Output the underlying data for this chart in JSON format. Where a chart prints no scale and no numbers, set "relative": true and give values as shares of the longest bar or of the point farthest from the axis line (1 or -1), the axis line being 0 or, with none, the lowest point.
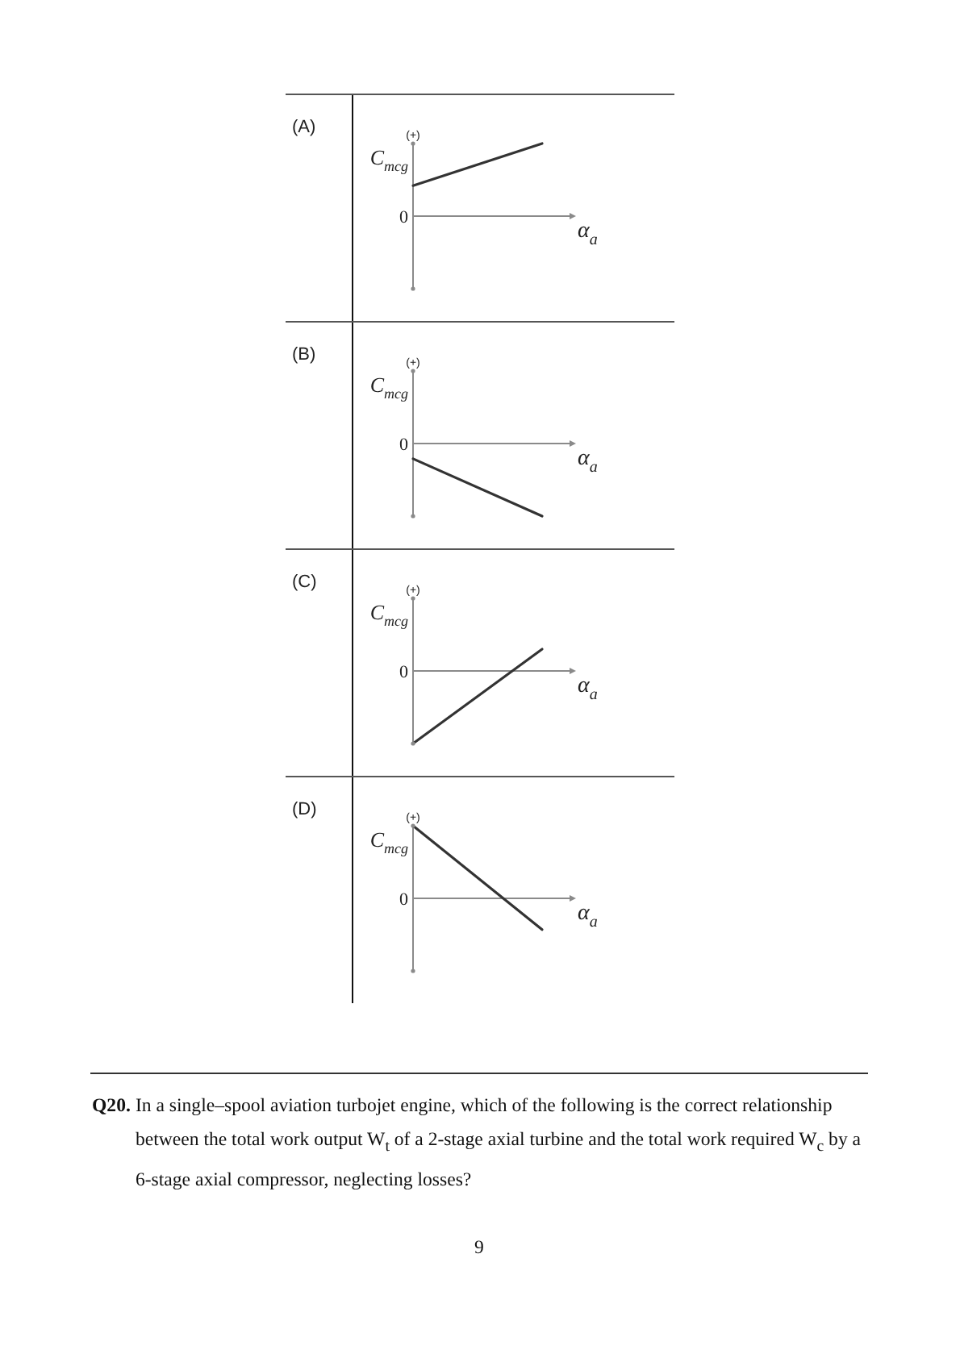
{
  "chart_data": [
    {
      "type": "line",
      "title": "(A)",
      "xlabel": "α$_{a}$",
      "ylabel": "C$_{mcg}$",
      "categories": [
        null,
        null
      ],
      "values": [
        0.42,
        1
      ],
      "color": "#333333",
      "relative": true,
      "annotations": [
        "(+)",
        "0"
      ]
    },
    {
      "type": "line",
      "title": "(B)",
      "xlabel": "α$_{a}$",
      "ylabel": "C$_{mcg}$",
      "categories": [
        null,
        null
      ],
      "values": [
        -0.21,
        -1
      ],
      "color": "#333333",
      "relative": true,
      "annotations": [
        "(+)",
        "0"
      ]
    },
    {
      "type": "line",
      "title": "(C)",
      "xlabel": "α$_{a}$",
      "ylabel": "C$_{mcg}$",
      "categories": [
        null,
        null
      ],
      "values": [
        -1,
        0.3
      ],
      "color": "#333333",
      "relative": true,
      "annotations": [
        "(+)",
        "0"
      ]
    },
    {
      "type": "line",
      "title": "(D)",
      "xlabel": "α$_{a}$",
      "ylabel": "C$_{mcg}$",
      "categories": [
        null,
        null
      ],
      "values": [
        1,
        -0.43
      ],
      "color": "#333333",
      "relative": true,
      "annotations": [
        "(+)",
        "0"
      ]
    },
    {
      "type": "other",
      "title": "Q20.",
      "annotations": [
        "In a single–spool aviation turbojet engine, which of the following is the correct relationship between the total work output W$_{t}$ of a 2-stage axial turbine and the total work required W$_{c}$ by a 6-stage axial compressor, neglecting losses?",
        "9"
      ]
    }
  ]
}
